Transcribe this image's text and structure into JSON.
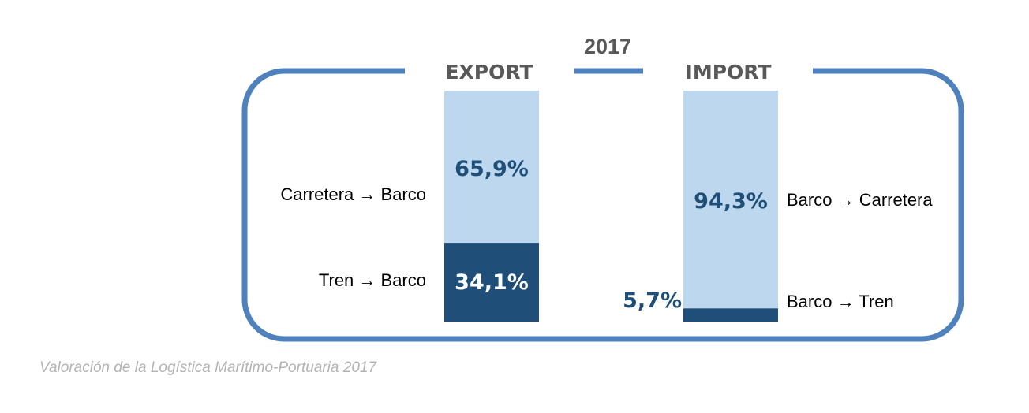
{
  "chart_data": {
    "type": "bar",
    "stacked": true,
    "title": "2017",
    "unit": "%",
    "ylim": [
      0,
      100
    ],
    "colors": {
      "frame": "#4f81bd",
      "light": "#bdd7ee",
      "dark": "#1f4e79",
      "heading": "#595959",
      "label": "#1f4e79"
    },
    "categories": [
      "EXPORT",
      "IMPORT"
    ],
    "bars": [
      {
        "name": "EXPORT",
        "segments": [
          {
            "label": "Carretera → Barco",
            "value": 65.9,
            "text": "65,9%"
          },
          {
            "label": "Tren → Barco",
            "value": 34.1,
            "text": "34,1%"
          }
        ]
      },
      {
        "name": "IMPORT",
        "segments": [
          {
            "label": "Barco → Carretera",
            "value": 94.3,
            "text": "94,3%"
          },
          {
            "label": "Barco → Tren",
            "value": 5.7,
            "text": "5,7%"
          }
        ]
      }
    ]
  },
  "caption": "Valoración de la Logística Marítimo-Portuaria 2017"
}
